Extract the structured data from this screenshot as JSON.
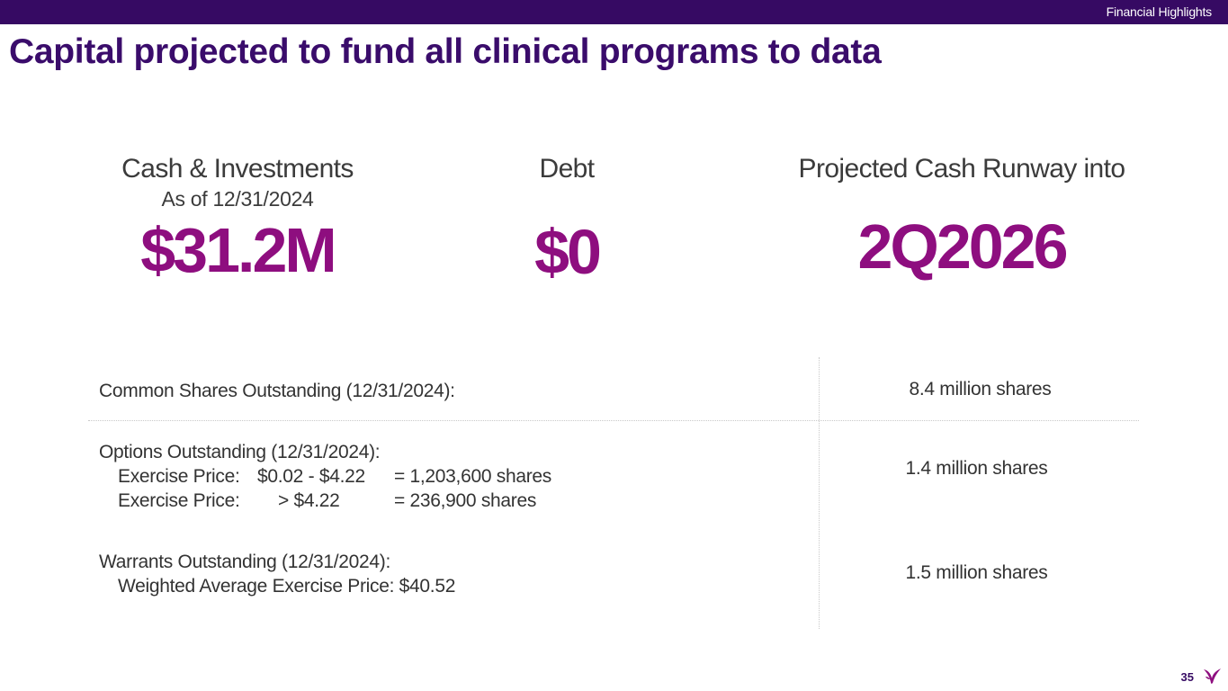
{
  "header": {
    "section": "Financial Highlights",
    "title": "Capital projected to fund all clinical programs to data"
  },
  "metrics": {
    "cash": {
      "label": "Cash & Investments",
      "sub": "As of 12/31/2024",
      "value": "$31.2M"
    },
    "debt": {
      "label": "Debt",
      "value": "$0"
    },
    "runway": {
      "label": "Projected Cash Runway into",
      "value": "2Q2026"
    }
  },
  "table": {
    "common": {
      "label": "Common Shares Outstanding (12/31/2024):",
      "value": "8.4 million shares"
    },
    "options": {
      "label": "Options Outstanding (12/31/2024):",
      "line1": {
        "a": "Exercise Price:",
        "b": "$0.02 - $4.22",
        "c": "= 1,203,600  shares"
      },
      "line2": {
        "a": "Exercise Price:",
        "b": "> $4.22",
        "c": "= 236,900  shares"
      },
      "value": "1.4 million shares"
    },
    "warrants": {
      "label": "Warrants Outstanding (12/31/2024):",
      "line1": "Weighted Average Exercise Price: $40.52",
      "value": "1.5 million shares"
    }
  },
  "footer": {
    "page_number": "35",
    "logo_icon": "bird-logo-icon",
    "brand_color": "#8e0e7f"
  }
}
